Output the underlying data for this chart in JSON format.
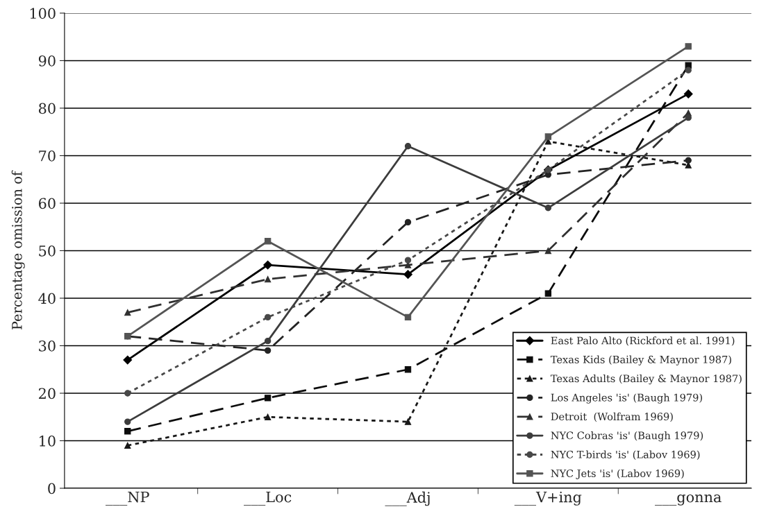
{
  "chart_data": {
    "type": "line",
    "ylabel": "Percentage omission of",
    "categories": [
      "___NP",
      "___Loc",
      "___Adj",
      "___V+ing",
      "___gonna"
    ],
    "ylim": [
      0,
      100
    ],
    "yticks": [
      0,
      10,
      20,
      30,
      40,
      50,
      60,
      70,
      80,
      90,
      100
    ],
    "grid": "y",
    "legend": "bottom right",
    "series": [
      {
        "name": "East Palo Alto (Rickford et al. 1991)",
        "color": "#000000",
        "marker": "diamond",
        "line_style": "solid",
        "values": [
          27,
          47,
          45,
          67,
          83
        ]
      },
      {
        "name": "Texas Kids (Bailey & Maynor 1987)",
        "color": "#0c0c0c",
        "marker": "square",
        "line_style": "dashed",
        "values": [
          12,
          19,
          25,
          41,
          89
        ]
      },
      {
        "name": "Texas Adults (Bailey & Maynor 1987)",
        "color": "#181818",
        "marker": "triangle",
        "line_style": "dotted",
        "values": [
          9,
          15,
          14,
          73,
          68
        ]
      },
      {
        "name": "Los Angeles 'is' (Baugh 1979)",
        "color": "#242424",
        "marker": "circle",
        "line_style": "dashed",
        "values": [
          32,
          29,
          56,
          66,
          69
        ]
      },
      {
        "name": "Detroit  (Wolfram 1969)",
        "color": "#303030",
        "marker": "triangle",
        "line_style": "dashed",
        "values": [
          37,
          44,
          47,
          50,
          79
        ]
      },
      {
        "name": "NYC Cobras 'is' (Baugh 1979)",
        "color": "#3c3c3c",
        "marker": "circle",
        "line_style": "solid",
        "values": [
          14,
          31,
          72,
          59,
          78
        ]
      },
      {
        "name": "NYC T-birds 'is' (Labov 1969)",
        "color": "#484848",
        "marker": "circle",
        "line_style": "dotted",
        "values": [
          20,
          36,
          48,
          67,
          88
        ]
      },
      {
        "name": "NYC Jets 'is' (Labov 1969)",
        "color": "#545454",
        "marker": "square",
        "line_style": "solid",
        "values": [
          32,
          52,
          36,
          74,
          93
        ]
      }
    ]
  }
}
